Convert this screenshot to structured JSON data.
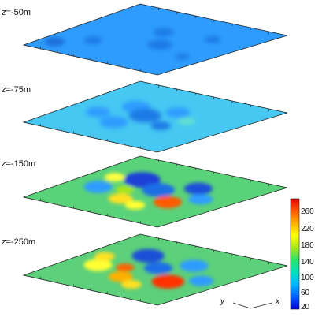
{
  "layers": [
    {
      "z_label": "z=-50m",
      "base_color": "#2e9cff",
      "level": 0
    },
    {
      "z_label": "z=-75m",
      "base_color": "#46c8f2",
      "level": 1
    },
    {
      "z_label": "z=-150m",
      "base_color": "#5ad27a",
      "level": 2
    },
    {
      "z_label": "z=-250m",
      "base_color": "#5cd07a",
      "level": 3
    }
  ],
  "colorbar": {
    "ticks": [
      "260",
      "220",
      "180",
      "140",
      "100",
      "60",
      "20"
    ],
    "colors": [
      "#0000c8",
      "#005cff",
      "#00b4ff",
      "#00e0c0",
      "#2ce26a",
      "#a6e61e",
      "#ffff00",
      "#ffb000",
      "#ff5a00",
      "#e80000"
    ]
  },
  "axes": {
    "y_label": "y",
    "x_label": "x"
  }
}
